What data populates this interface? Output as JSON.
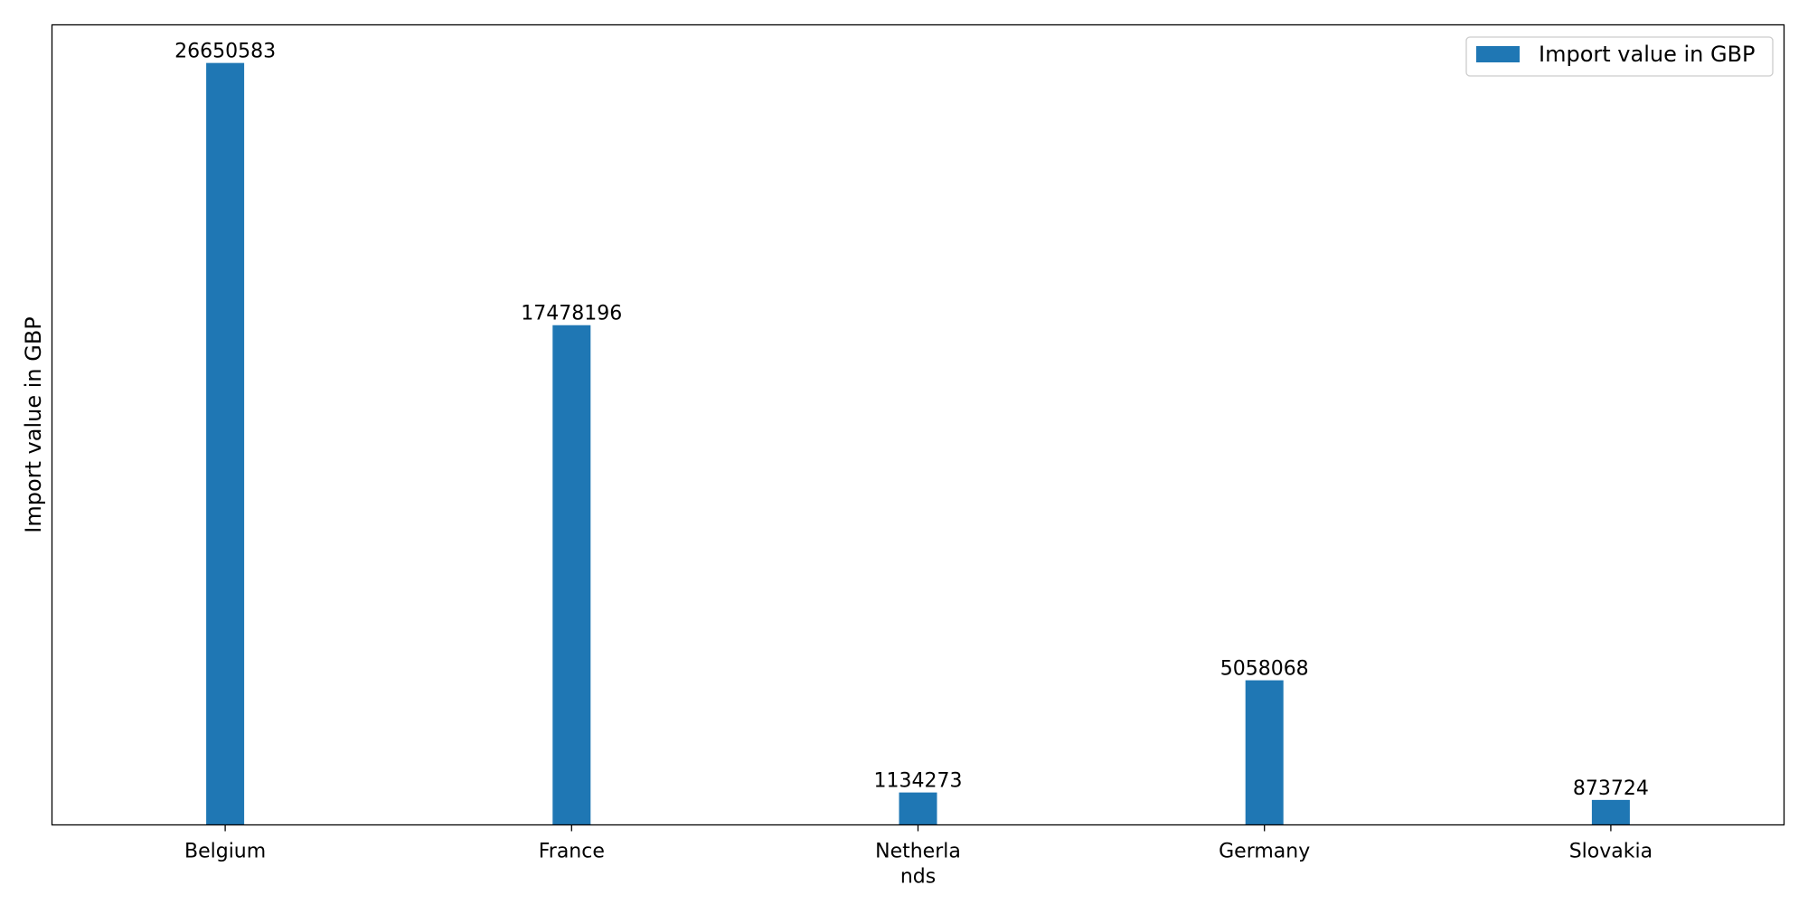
{
  "chart_data": {
    "type": "bar",
    "title": "",
    "xlabel": "",
    "ylabel": "Import value in GBP",
    "categories": [
      "Belgium",
      "France",
      "Netherla\nnds",
      "Germany",
      "Slovakia"
    ],
    "series": [
      {
        "name": "Import value in GBP",
        "color": "#1f77b4",
        "values": [
          26650583,
          17478196,
          1134273,
          5058068,
          873724
        ]
      }
    ],
    "data_labels": [
      "26650583",
      "17478196",
      "1134273",
      "5058068",
      "873724"
    ],
    "ylim": [
      0,
      27983112
    ],
    "y_ticks_shown": false,
    "grid": false,
    "legend_position": "top-right"
  }
}
